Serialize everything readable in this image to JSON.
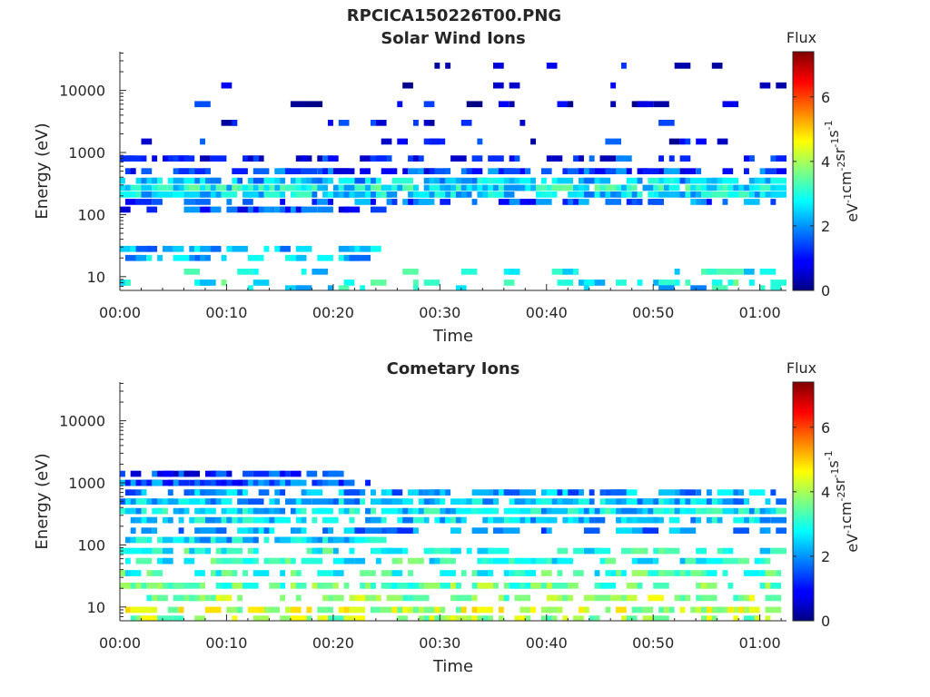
{
  "figure_title": "RPCICA150226T00.PNG",
  "chart_data": [
    {
      "type": "heatmap",
      "title": "Solar Wind Ions",
      "xlabel": "Time",
      "ylabel": "Energy (eV)",
      "x_ticks": [
        "00:00",
        "00:10",
        "00:20",
        "00:30",
        "00:40",
        "00:50",
        "01:00"
      ],
      "x_tick_minutes": [
        0,
        10,
        20,
        30,
        40,
        50,
        60
      ],
      "xlim_minutes": [
        0,
        62.5
      ],
      "y_scale": "log",
      "y_ticks": [
        "10",
        "100",
        "1000",
        "10000"
      ],
      "y_tick_values": [
        10,
        100,
        1000,
        10000
      ],
      "ylim": [
        6,
        42000
      ],
      "colorbar": {
        "title": "Flux",
        "label": "eV-1cm-2sr-1s-1",
        "label_parts": [
          {
            "base": "eV",
            "sup": "-1"
          },
          {
            "base": "cm",
            "sup": "-2"
          },
          {
            "base": "sr",
            "sup": "-1"
          },
          {
            "base": "s",
            "sup": "-1"
          }
        ],
        "ticks": [
          "0",
          "2",
          "4",
          "6"
        ],
        "tick_values": [
          0,
          2,
          4,
          6
        ],
        "range": [
          0,
          7.4
        ],
        "colormap": "jet"
      },
      "bands": [
        {
          "e": 25000,
          "t0": 0,
          "t1": 62,
          "f": 0.6,
          "p": 0.09
        },
        {
          "e": 12000,
          "t0": 0,
          "t1": 62,
          "f": 0.7,
          "p": 0.08
        },
        {
          "e": 6000,
          "t0": 0,
          "t1": 62,
          "f": 0.7,
          "p": 0.09
        },
        {
          "e": 3000,
          "t0": 0,
          "t1": 62,
          "f": 0.8,
          "p": 0.1
        },
        {
          "e": 1500,
          "t0": 0,
          "t1": 62,
          "f": 0.9,
          "p": 0.12
        },
        {
          "e": 800,
          "t0": 0,
          "t1": 62,
          "f": 1.1,
          "p": 0.3
        },
        {
          "e": 500,
          "t0": 0,
          "t1": 62,
          "f": 1.4,
          "p": 0.45
        },
        {
          "e": 350,
          "t0": 0,
          "t1": 62,
          "f": 2.3,
          "p": 0.7
        },
        {
          "e": 270,
          "t0": 0,
          "t1": 62,
          "f": 2.8,
          "p": 0.8
        },
        {
          "e": 210,
          "t0": 0,
          "t1": 62,
          "f": 2.5,
          "p": 0.6
        },
        {
          "e": 160,
          "t0": 0,
          "t1": 62,
          "f": 1.6,
          "p": 0.35
        },
        {
          "e": 120,
          "t0": 0,
          "t1": 24,
          "f": 1.3,
          "p": 0.5
        },
        {
          "e": 28,
          "t0": 0,
          "t1": 24,
          "f": 2.1,
          "p": 0.45
        },
        {
          "e": 20,
          "t0": 0,
          "t1": 24,
          "f": 2.3,
          "p": 0.4
        },
        {
          "e": 12,
          "t0": 0,
          "t1": 62,
          "f": 2.7,
          "p": 0.15
        },
        {
          "e": 8,
          "t0": 0,
          "t1": 62,
          "f": 2.9,
          "p": 0.18
        },
        {
          "e": 6.5,
          "t0": 0,
          "t1": 62,
          "f": 2.6,
          "p": 0.15
        }
      ]
    },
    {
      "type": "heatmap",
      "title": "Cometary Ions",
      "xlabel": "Time",
      "ylabel": "Energy (eV)",
      "x_ticks": [
        "00:00",
        "00:10",
        "00:20",
        "00:30",
        "00:40",
        "00:50",
        "01:00"
      ],
      "x_tick_minutes": [
        0,
        10,
        20,
        30,
        40,
        50,
        60
      ],
      "xlim_minutes": [
        0,
        62.5
      ],
      "y_scale": "log",
      "y_ticks": [
        "10",
        "100",
        "1000",
        "10000"
      ],
      "y_tick_values": [
        10,
        100,
        1000,
        10000
      ],
      "ylim": [
        6,
        42000
      ],
      "colorbar": {
        "title": "Flux",
        "label": "eV-1cm-2sr-1s-1",
        "label_parts": [
          {
            "base": "eV",
            "sup": "-1"
          },
          {
            "base": "cm",
            "sup": "-2"
          },
          {
            "base": "sr",
            "sup": "-1"
          },
          {
            "base": "s",
            "sup": "-1"
          }
        ],
        "ticks": [
          "0",
          "2",
          "4",
          "6"
        ],
        "tick_values": [
          0,
          2,
          4,
          6
        ],
        "range": [
          0,
          7.4
        ],
        "colormap": "jet"
      },
      "bands": [
        {
          "e": 1400,
          "t0": 0,
          "t1": 20,
          "f": 1.2,
          "p": 0.35
        },
        {
          "e": 1000,
          "t0": 0,
          "t1": 24,
          "f": 1.6,
          "p": 0.7
        },
        {
          "e": 700,
          "t0": 0,
          "t1": 62,
          "f": 2.0,
          "p": 0.55
        },
        {
          "e": 500,
          "t0": 0,
          "t1": 62,
          "f": 2.3,
          "p": 0.65
        },
        {
          "e": 350,
          "t0": 0,
          "t1": 62,
          "f": 2.6,
          "p": 0.75
        },
        {
          "e": 250,
          "t0": 0,
          "t1": 62,
          "f": 2.5,
          "p": 0.6
        },
        {
          "e": 170,
          "t0": 0,
          "t1": 62,
          "f": 2.0,
          "p": 0.35
        },
        {
          "e": 120,
          "t0": 0,
          "t1": 24,
          "f": 2.5,
          "p": 0.75
        },
        {
          "e": 80,
          "t0": 0,
          "t1": 62,
          "f": 2.9,
          "p": 0.45
        },
        {
          "e": 55,
          "t0": 0,
          "t1": 62,
          "f": 3.0,
          "p": 0.4
        },
        {
          "e": 35,
          "t0": 0,
          "t1": 62,
          "f": 3.1,
          "p": 0.4
        },
        {
          "e": 22,
          "t0": 0,
          "t1": 62,
          "f": 3.5,
          "p": 0.45
        },
        {
          "e": 14,
          "t0": 0,
          "t1": 62,
          "f": 3.8,
          "p": 0.45
        },
        {
          "e": 9,
          "t0": 0,
          "t1": 62,
          "f": 4.2,
          "p": 0.45
        },
        {
          "e": 6.5,
          "t0": 0,
          "t1": 62,
          "f": 3.9,
          "p": 0.4
        }
      ]
    }
  ]
}
